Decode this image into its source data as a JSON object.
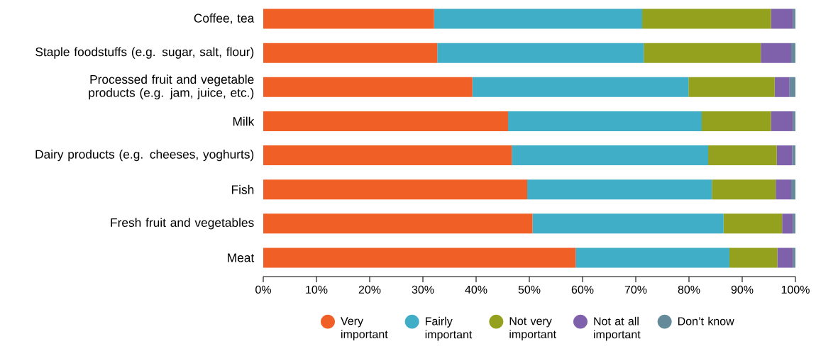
{
  "chart_data": {
    "type": "bar",
    "orientation": "horizontal",
    "stacked": true,
    "legend": "bottom",
    "categories": [
      "Coffee, tea",
      "Staple foodstuffs (e.g. sugar, salt, flour)",
      "Processed fruit and vegetable products (e.g. jam, juice, etc.)",
      "Milk",
      "Dairy products (e.g. cheeses, yoghurts)",
      "Fish",
      "Fresh fruit and vegetables",
      "Meat"
    ],
    "series": [
      {
        "name": "Very important",
        "color": "#f05f26",
        "values": [
          32.1,
          32.7,
          39.3,
          46.0,
          46.7,
          49.6,
          50.6,
          58.7
        ]
      },
      {
        "name": "Fairly important",
        "color": "#41aec7",
        "values": [
          39.1,
          38.8,
          40.6,
          36.4,
          36.9,
          34.7,
          35.9,
          28.9
        ]
      },
      {
        "name": "Not very important",
        "color": "#93a11f",
        "values": [
          24.2,
          22.0,
          16.2,
          13.0,
          12.9,
          12.0,
          11.0,
          9.0
        ]
      },
      {
        "name": "Not at all important",
        "color": "#7f60aa",
        "values": [
          4.1,
          5.7,
          2.8,
          4.1,
          2.9,
          2.9,
          2.0,
          2.9
        ]
      },
      {
        "name": "Don’t know",
        "color": "#658a9a",
        "values": [
          0.5,
          0.8,
          1.1,
          0.5,
          0.6,
          0.8,
          0.5,
          0.5
        ]
      }
    ],
    "xlim": [
      0,
      100
    ],
    "xticks": [
      {
        "value": 0,
        "label": "0%"
      },
      {
        "value": 10,
        "label": "10%"
      },
      {
        "value": 20,
        "label": "20%"
      },
      {
        "value": 30,
        "label": "30%"
      },
      {
        "value": 40,
        "label": "40%"
      },
      {
        "value": 50,
        "label": "50%"
      },
      {
        "value": 60,
        "label": "60%"
      },
      {
        "value": 70,
        "label": "70%"
      },
      {
        "value": 80,
        "label": "80%"
      },
      {
        "value": 90,
        "label": "90%"
      },
      {
        "value": 100,
        "label": "100%"
      }
    ]
  }
}
